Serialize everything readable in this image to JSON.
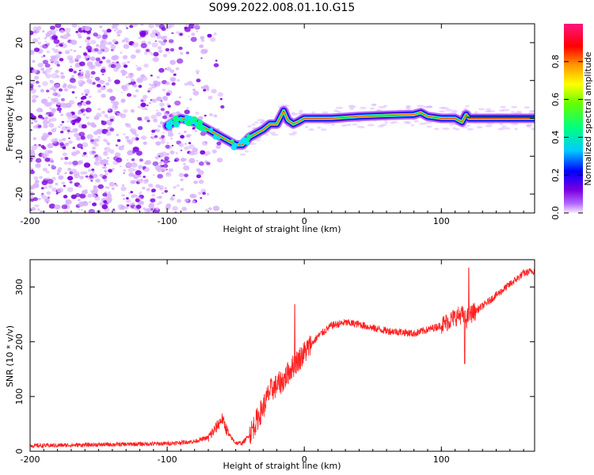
{
  "title": "S099.2022.008.01.10.G15",
  "colors": {
    "signal": "#ff2020",
    "noise_light": "#d9b3ff",
    "noise_dark": "#7b00e0",
    "colormap": [
      "#f2e6ff",
      "#8a00ff",
      "#0000ff",
      "#00e5ff",
      "#00ff40",
      "#ffff00",
      "#ff9900",
      "#ff0000",
      "#ff1493"
    ]
  },
  "chart_data": [
    {
      "type": "heatmap",
      "xlabel": "Height of straight line (km)",
      "ylabel": "Frequency (Hz)",
      "xlim": [
        -200,
        168
      ],
      "ylim": [
        -25,
        25
      ],
      "xticks": [
        -200,
        -100,
        0,
        100
      ],
      "yticks": [
        -20,
        -10,
        0,
        10,
        20
      ],
      "xtick_labels": [
        "-200",
        "-100",
        "0",
        "100"
      ],
      "ytick_labels": [
        "-20",
        "-10",
        "0",
        "10",
        "20"
      ],
      "colorbar": {
        "label": "Normalized spectral amplitude",
        "range": [
          0,
          1
        ],
        "ticks": [
          0.0,
          0.2,
          0.4,
          0.6,
          0.8
        ],
        "tick_labels": [
          "0.0",
          "0.2",
          "0.4",
          "0.6",
          "0.8"
        ]
      },
      "signal_track": {
        "x": [
          -100,
          -90,
          -80,
          -70,
          -60,
          -50,
          -45,
          -40,
          -35,
          -30,
          -25,
          -20,
          -15,
          -12,
          -8,
          -5,
          0,
          10,
          20,
          40,
          60,
          80,
          85,
          90,
          100,
          110,
          115,
          118,
          120,
          140,
          168
        ],
        "y": [
          -2,
          0,
          -1,
          -3,
          -5,
          -7,
          -7,
          -5,
          -4,
          -3,
          -1.5,
          -1.5,
          2,
          -0.5,
          -1.5,
          -1,
          0,
          0,
          0,
          0.5,
          0.8,
          1,
          1.5,
          0.5,
          0,
          0,
          -1,
          1,
          0,
          0,
          0
        ]
      }
    },
    {
      "type": "line",
      "xlabel": "Height of straight line (km)",
      "ylabel": "SNR (10 * v/v)",
      "xlim": [
        -200,
        168
      ],
      "ylim": [
        0,
        350
      ],
      "xticks": [
        -200,
        -100,
        0,
        100
      ],
      "yticks": [
        0,
        100,
        200,
        300
      ],
      "xtick_labels": [
        "-200",
        "-100",
        "0",
        "100"
      ],
      "ytick_labels": [
        "0",
        "100",
        "200",
        "300"
      ],
      "series": [
        {
          "x": [
            -200,
            -150,
            -100,
            -80,
            -70,
            -65,
            -60,
            -55,
            -50,
            -45,
            -40,
            -30,
            -25,
            -20,
            -15,
            -10,
            -5,
            0,
            10,
            20,
            30,
            40,
            50,
            60,
            70,
            80,
            90,
            100,
            110,
            115,
            118,
            120,
            130,
            140,
            150,
            160,
            168
          ],
          "y": [
            10,
            12,
            14,
            18,
            25,
            40,
            60,
            30,
            15,
            15,
            30,
            80,
            110,
            120,
            130,
            150,
            165,
            180,
            210,
            230,
            235,
            232,
            225,
            220,
            218,
            215,
            222,
            230,
            245,
            250,
            240,
            248,
            265,
            285,
            305,
            325,
            330
          ]
        }
      ]
    }
  ]
}
